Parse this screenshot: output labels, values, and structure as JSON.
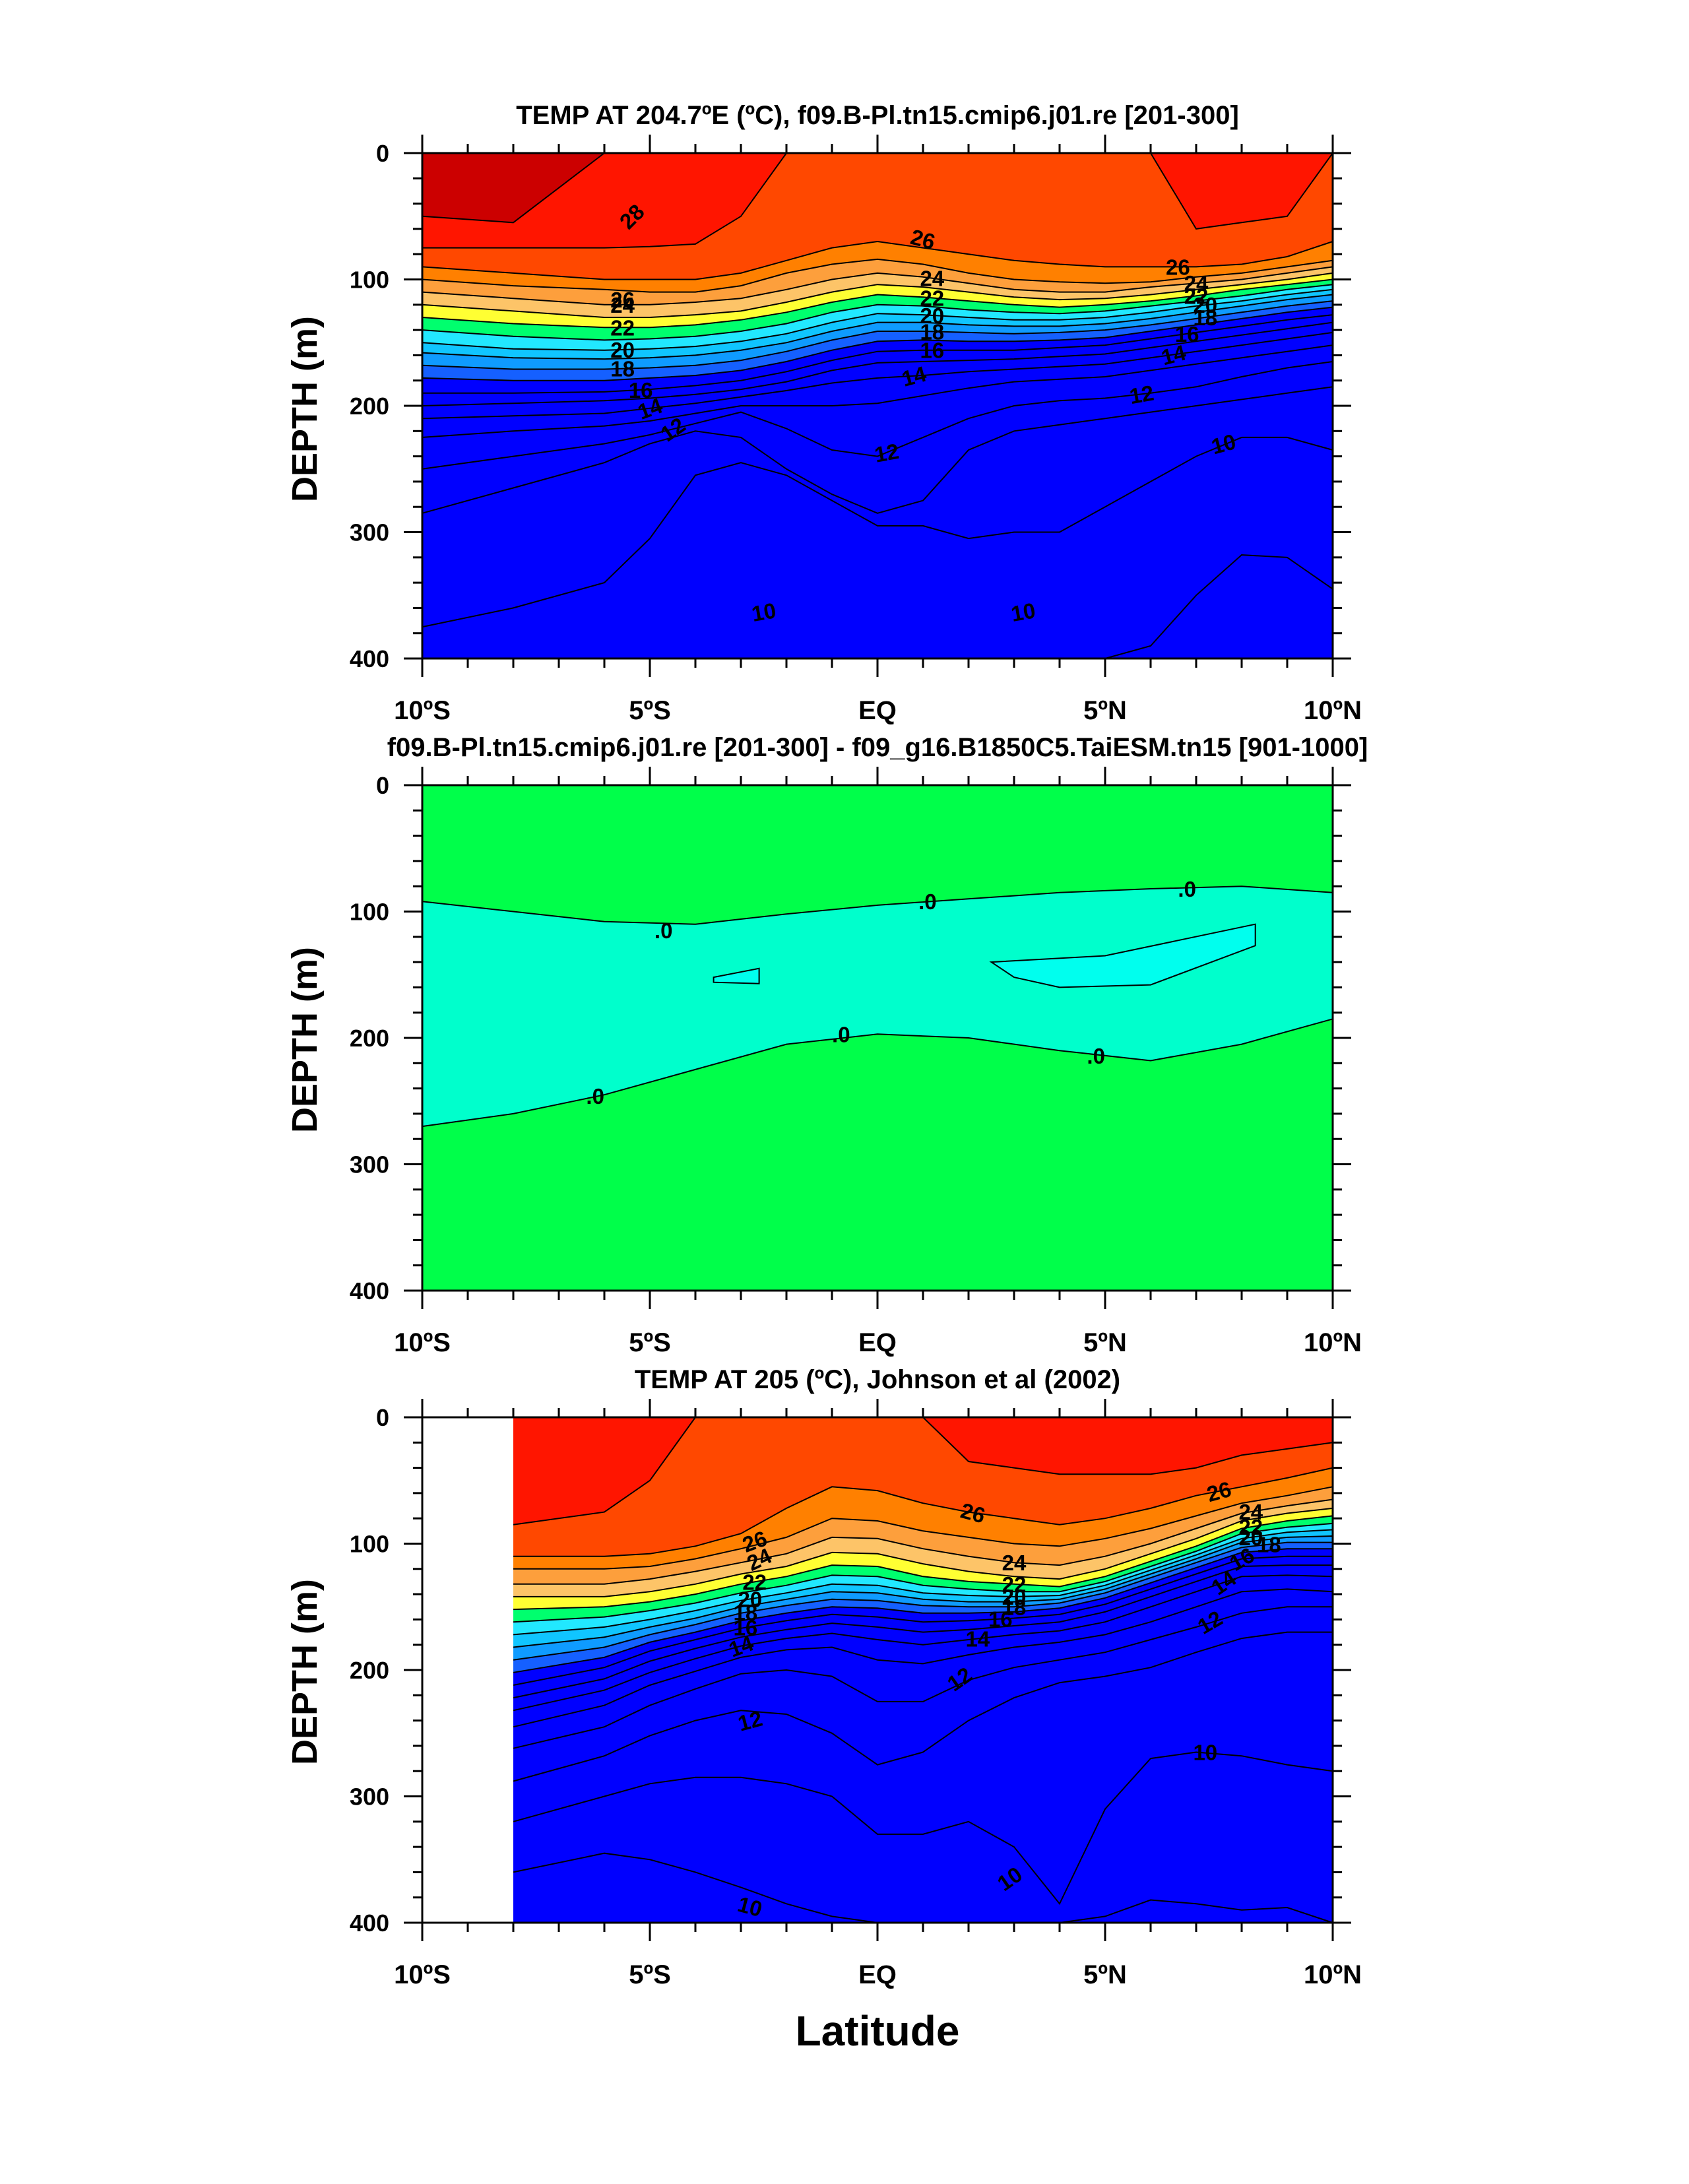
{
  "figure": {
    "xlabel": "Latitude"
  },
  "chart_data": [
    {
      "type": "heatmap",
      "title": "TEMP AT 204.7ºE (ºC), f09.B-Pl.tn15.cmip6.j01.re [201-300]",
      "ylabel": "DEPTH (m)",
      "xlim": [
        -10,
        10
      ],
      "ylim": [
        400,
        0
      ],
      "y_ticks": [
        "0",
        "100",
        "200",
        "300",
        "400"
      ],
      "x_ticks": [
        "10ºS",
        "5ºS",
        "EQ",
        "5ºN",
        "10ºN"
      ],
      "colors": [
        "#0000ff",
        "#1560ff",
        "#0f9bff",
        "#10c5ff",
        "#22e8ff",
        "#00ff6e",
        "#ffff33",
        "#fdc468",
        "#fd9f3c",
        "#ff8000",
        "#ff4800",
        "#ff1500",
        "#cc0000"
      ],
      "x_lat": [
        -10,
        -8,
        -6,
        -5,
        -4,
        -3,
        -2,
        -1,
        0,
        1,
        2,
        3,
        4,
        5,
        6,
        7,
        8,
        9,
        10
      ],
      "isotherm_depths": {
        "28": [
          50,
          55,
          0,
          0,
          0,
          0,
          0,
          0,
          0,
          0,
          0,
          0,
          0,
          0,
          0,
          0,
          0,
          0,
          0
        ],
        "27": [
          75,
          75,
          75,
          74,
          72,
          50,
          0,
          0,
          0,
          0,
          0,
          0,
          0,
          0,
          0,
          60,
          55,
          50,
          0
        ],
        "26": [
          90,
          95,
          100,
          100,
          100,
          95,
          85,
          75,
          70,
          75,
          80,
          85,
          88,
          90,
          90,
          90,
          88,
          82,
          70
        ],
        "25": [
          100,
          105,
          108,
          110,
          110,
          105,
          95,
          88,
          84,
          88,
          95,
          100,
          102,
          103,
          102,
          98,
          95,
          90,
          85
        ],
        "24": [
          110,
          115,
          120,
          120,
          118,
          115,
          108,
          100,
          95,
          98,
          103,
          108,
          110,
          110,
          106,
          103,
          100,
          95,
          90
        ],
        "23": [
          120,
          125,
          130,
          130,
          128,
          125,
          118,
          110,
          104,
          106,
          110,
          114,
          116,
          115,
          112,
          108,
          104,
          100,
          95
        ],
        "22": [
          130,
          135,
          138,
          138,
          136,
          132,
          126,
          118,
          112,
          114,
          117,
          120,
          122,
          120,
          117,
          113,
          108,
          104,
          100
        ],
        "21": [
          140,
          145,
          148,
          147,
          145,
          141,
          135,
          126,
          120,
          121,
          124,
          126,
          127,
          125,
          121,
          117,
          113,
          108,
          104
        ],
        "20": [
          150,
          155,
          156,
          155,
          153,
          149,
          143,
          134,
          127,
          128,
          130,
          132,
          132,
          130,
          126,
          121,
          117,
          112,
          108
        ],
        "19": [
          158,
          162,
          163,
          162,
          160,
          156,
          150,
          141,
          134,
          134,
          136,
          137,
          137,
          135,
          131,
          126,
          121,
          116,
          112
        ],
        "18": [
          168,
          171,
          171,
          170,
          168,
          164,
          157,
          148,
          141,
          141,
          142,
          143,
          142,
          140,
          136,
          131,
          126,
          121,
          117
        ],
        "17": [
          178,
          180,
          180,
          178,
          176,
          172,
          165,
          156,
          149,
          148,
          149,
          149,
          148,
          146,
          141,
          136,
          131,
          126,
          122
        ],
        "16": [
          190,
          190,
          189,
          187,
          184,
          180,
          173,
          164,
          157,
          156,
          156,
          156,
          154,
          152,
          147,
          142,
          137,
          132,
          128
        ],
        "15": [
          200,
          198,
          196,
          194,
          191,
          187,
          181,
          172,
          166,
          165,
          164,
          163,
          161,
          159,
          154,
          149,
          144,
          139,
          134
        ],
        "14": [
          210,
          208,
          206,
          202,
          198,
          193,
          188,
          182,
          178,
          176,
          173,
          171,
          169,
          167,
          162,
          157,
          152,
          147,
          142
        ],
        "13": [
          225,
          220,
          216,
          212,
          206,
          200,
          200,
          200,
          198,
          192,
          186,
          181,
          179,
          177,
          172,
          167,
          162,
          157,
          152
        ],
        "12": [
          250,
          240,
          230,
          223,
          214,
          205,
          218,
          235,
          240,
          225,
          210,
          200,
          196,
          194,
          190,
          185,
          177,
          170,
          165
        ],
        "11": [
          285,
          265,
          245,
          230,
          220,
          225,
          250,
          270,
          285,
          275,
          235,
          220,
          215,
          210,
          205,
          200,
          195,
          190,
          185
        ],
        "10": [
          375,
          360,
          340,
          305,
          255,
          245,
          255,
          275,
          295,
          295,
          305,
          300,
          300,
          280,
          260,
          240,
          225,
          225,
          235
        ],
        "9": [
          400,
          400,
          400,
          400,
          400,
          400,
          400,
          400,
          400,
          400,
          400,
          400,
          400,
          400,
          390,
          350,
          318,
          320,
          345
        ]
      },
      "contour_labels": [
        "28",
        "26",
        "24",
        "22",
        "20",
        "18",
        "16",
        "14",
        "12",
        "10"
      ]
    },
    {
      "type": "heatmap",
      "title": "f09.B-Pl.tn15.cmip6.j01.re [201-300] - f09_g16.B1850C5.TaiESM.tn15 [901-1000]",
      "ylabel": "DEPTH (m)",
      "xlim": [
        -10,
        10
      ],
      "ylim": [
        400,
        0
      ],
      "y_ticks": [
        "0",
        "100",
        "200",
        "300",
        "400"
      ],
      "x_ticks": [
        "10ºS",
        "5ºS",
        "EQ",
        "5ºN",
        "10ºN"
      ],
      "colors": [
        "#00ff4a",
        "#00ffcc",
        "#00ffee"
      ],
      "contour_labels": [
        ".0"
      ],
      "upper_zero_line": {
        "x": [
          -10,
          -8,
          -6,
          -4,
          -2,
          0,
          2,
          4,
          6,
          8,
          10
        ],
        "depth": [
          92,
          100,
          108,
          110,
          102,
          95,
          90,
          85,
          82,
          80,
          85
        ]
      },
      "lower_zero_line": {
        "x": [
          -10,
          -8,
          -6,
          -4,
          -2,
          0,
          2,
          4,
          6,
          8,
          10
        ],
        "depth": [
          270,
          260,
          245,
          225,
          205,
          197,
          200,
          210,
          218,
          205,
          185
        ]
      }
    },
    {
      "type": "heatmap",
      "title": "TEMP AT 205 (ºC), Johnson et al (2002)",
      "ylabel": "DEPTH (m)",
      "xlim": [
        -10,
        10
      ],
      "ylim": [
        400,
        0
      ],
      "y_ticks": [
        "0",
        "100",
        "200",
        "300",
        "400"
      ],
      "x_ticks": [
        "10ºS",
        "5ºS",
        "EQ",
        "5ºN",
        "10ºN"
      ],
      "data_xlim": [
        -8,
        10
      ],
      "colors": [
        "#0000ff",
        "#1560ff",
        "#0f9bff",
        "#10c5ff",
        "#22e8ff",
        "#00ff6e",
        "#ffff33",
        "#fdc468",
        "#fd9f3c",
        "#ff8000",
        "#ff4800",
        "#ff1500"
      ],
      "x_lat": [
        -8,
        -6,
        -5,
        -4,
        -3,
        -2,
        -1,
        0,
        1,
        2,
        3,
        4,
        5,
        6,
        7,
        8,
        9,
        10
      ],
      "isotherm_depths": {
        "27": [
          85,
          75,
          50,
          0,
          0,
          0,
          0,
          0,
          0,
          35,
          40,
          45,
          45,
          45,
          40,
          30,
          25,
          20
        ],
        "26": [
          110,
          110,
          108,
          102,
          92,
          72,
          55,
          58,
          68,
          75,
          80,
          85,
          80,
          72,
          62,
          55,
          48,
          40
        ],
        "25": [
          120,
          120,
          118,
          112,
          104,
          95,
          80,
          82,
          90,
          95,
          100,
          102,
          96,
          88,
          78,
          68,
          62,
          55
        ],
        "24": [
          132,
          132,
          128,
          122,
          115,
          108,
          95,
          96,
          104,
          110,
          115,
          117,
          110,
          100,
          88,
          76,
          70,
          65
        ],
        "23": [
          142,
          142,
          138,
          132,
          124,
          118,
          107,
          108,
          116,
          122,
          126,
          128,
          120,
          108,
          96,
          82,
          76,
          72
        ],
        "22": [
          152,
          150,
          146,
          140,
          132,
          126,
          117,
          118,
          126,
          130,
          132,
          134,
          126,
          114,
          102,
          88,
          82,
          78
        ],
        "21": [
          162,
          158,
          153,
          147,
          139,
          133,
          125,
          126,
          133,
          136,
          138,
          138,
          130,
          118,
          106,
          92,
          87,
          84
        ],
        "20": [
          172,
          166,
          160,
          153,
          145,
          139,
          132,
          133,
          139,
          141,
          142,
          141,
          133,
          121,
          109,
          96,
          91,
          89
        ],
        "19": [
          182,
          174,
          166,
          159,
          150,
          144,
          138,
          139,
          144,
          146,
          146,
          144,
          136,
          124,
          112,
          99,
          95,
          94
        ],
        "18": [
          192,
          182,
          172,
          164,
          155,
          149,
          144,
          145,
          149,
          150,
          150,
          147,
          139,
          127,
          115,
          103,
          99,
          99
        ],
        "17": [
          202,
          190,
          178,
          170,
          161,
          155,
          150,
          151,
          155,
          155,
          154,
          151,
          143,
          131,
          119,
          107,
          104,
          104
        ],
        "16": [
          212,
          198,
          185,
          176,
          167,
          161,
          156,
          158,
          162,
          161,
          159,
          156,
          148,
          136,
          124,
          112,
          110,
          110
        ],
        "15": [
          222,
          207,
          193,
          183,
          174,
          168,
          163,
          166,
          170,
          168,
          165,
          162,
          154,
          142,
          130,
          118,
          117,
          117
        ],
        "14": [
          232,
          216,
          202,
          191,
          181,
          175,
          171,
          176,
          180,
          176,
          172,
          169,
          162,
          150,
          138,
          126,
          125,
          126
        ],
        "13": [
          245,
          228,
          212,
          201,
          190,
          184,
          182,
          192,
          195,
          188,
          182,
          178,
          172,
          162,
          150,
          138,
          136,
          138
        ],
        "12": [
          262,
          245,
          228,
          215,
          203,
          200,
          205,
          225,
          225,
          208,
          198,
          192,
          186,
          176,
          166,
          155,
          150,
          150
        ],
        "11": [
          288,
          268,
          252,
          240,
          232,
          235,
          250,
          275,
          265,
          240,
          222,
          210,
          205,
          198,
          186,
          175,
          170,
          170
        ],
        "10": [
          320,
          300,
          290,
          285,
          285,
          290,
          300,
          330,
          330,
          320,
          340,
          385,
          310,
          270,
          265,
          268,
          275,
          280
        ],
        "9": [
          400,
          400,
          400,
          400,
          400,
          400,
          400,
          400,
          400,
          400,
          400,
          400,
          395,
          382,
          385,
          390,
          388,
          400
        ]
      },
      "isotherm_10_lower": [
        360,
        345,
        350,
        360,
        372,
        385,
        395,
        400,
        400,
        400,
        400,
        400,
        400,
        400,
        400,
        400,
        400,
        400
      ],
      "contour_labels": [
        "26",
        "24",
        "22",
        "20",
        "18",
        "16",
        "14",
        "12",
        "10"
      ]
    }
  ]
}
